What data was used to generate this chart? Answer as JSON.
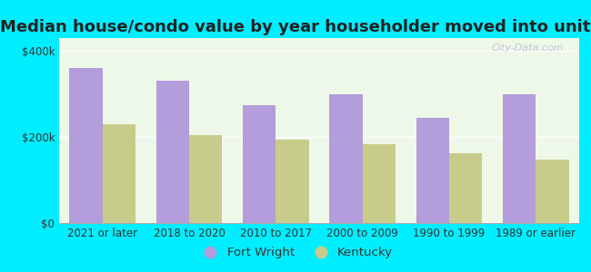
{
  "title": "Median house/condo value by year householder moved into unit",
  "categories": [
    "2021 or later",
    "2018 to 2020",
    "2010 to 2017",
    "2000 to 2009",
    "1990 to 1999",
    "1989 or earlier"
  ],
  "fort_wright": [
    360000,
    330000,
    275000,
    300000,
    245000,
    300000
  ],
  "kentucky": [
    230000,
    205000,
    193000,
    183000,
    163000,
    148000
  ],
  "fort_wright_color": "#b39ddb",
  "kentucky_color": "#c8cc8a",
  "background_outer": "#00eeff",
  "background_inner": "#eef8e8",
  "ylabel_ticks": [
    "$0",
    "$200k",
    "$400k"
  ],
  "ytick_vals": [
    0,
    200000,
    400000
  ],
  "ylim": [
    0,
    430000
  ],
  "bar_width": 0.38,
  "legend_fort_wright": "Fort Wright",
  "legend_kentucky": "Kentucky",
  "title_fontsize": 13,
  "tick_fontsize": 8.5,
  "legend_fontsize": 9.5,
  "watermark": "City-Data.com"
}
